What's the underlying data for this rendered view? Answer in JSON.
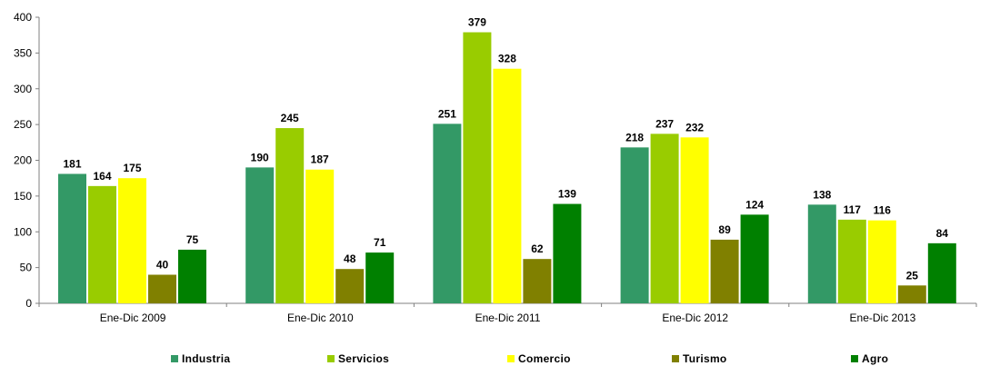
{
  "chart_data": {
    "type": "bar",
    "categories": [
      "Ene-Dic 2009",
      "Ene-Dic 2010",
      "Ene-Dic 2011",
      "Ene-Dic 2012",
      "Ene-Dic 2013"
    ],
    "series": [
      {
        "name": "Industria",
        "color": "#339966",
        "values": [
          181,
          190,
          251,
          218,
          138
        ]
      },
      {
        "name": "Servicios",
        "color": "#99CC00",
        "values": [
          164,
          245,
          379,
          237,
          117
        ]
      },
      {
        "name": "Comercio",
        "color": "#FFFF00",
        "values": [
          175,
          187,
          328,
          232,
          116
        ]
      },
      {
        "name": "Turismo",
        "color": "#808000",
        "values": [
          40,
          48,
          62,
          89,
          25
        ]
      },
      {
        "name": "Agro",
        "color": "#008000",
        "values": [
          75,
          71,
          139,
          124,
          84
        ]
      }
    ],
    "ylim": [
      0,
      400
    ],
    "yticks": [
      0,
      50,
      100,
      150,
      200,
      250,
      300,
      350,
      400
    ],
    "grid": false,
    "legend_position": "bottom"
  }
}
